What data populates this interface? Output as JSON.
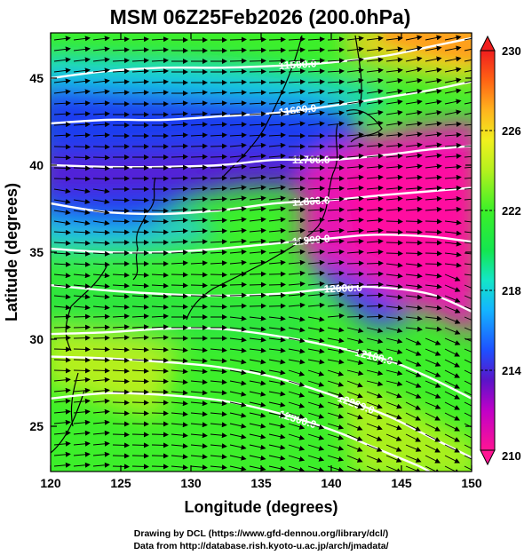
{
  "chart_data": {
    "type": "heatmap",
    "title": "MSM 06Z25Feb2026 (200.0hPa)",
    "xlabel": "Longitude (degrees)",
    "ylabel": "Latitude  (degrees)",
    "xlim": [
      120,
      150
    ],
    "ylim": [
      22.4,
      47.6
    ],
    "x_ticks": [
      120,
      125,
      130,
      135,
      140,
      145,
      150
    ],
    "y_ticks": [
      25,
      30,
      35,
      40,
      45
    ],
    "colorbar": {
      "range": [
        210,
        230
      ],
      "ticks": [
        210,
        214,
        218,
        222,
        226,
        230
      ],
      "color_stops": [
        {
          "value": 210,
          "color": "#ff1493"
        },
        {
          "value": 212,
          "color": "#c000c8"
        },
        {
          "value": 213.5,
          "color": "#5a14c8"
        },
        {
          "value": 215,
          "color": "#1e50ff"
        },
        {
          "value": 217,
          "color": "#14b4ff"
        },
        {
          "value": 218.5,
          "color": "#14e6c8"
        },
        {
          "value": 220,
          "color": "#14e650"
        },
        {
          "value": 222,
          "color": "#3cf028"
        },
        {
          "value": 224,
          "color": "#b4f01e"
        },
        {
          "value": 225.5,
          "color": "#f0f01e"
        },
        {
          "value": 227,
          "color": "#ffb41e"
        },
        {
          "value": 228.5,
          "color": "#ff6414"
        },
        {
          "value": 230,
          "color": "#f01e1e"
        }
      ]
    },
    "contours": [
      {
        "label": "11500.0",
        "points": [
          [
            120,
            45.0
          ],
          [
            124,
            45.4
          ],
          [
            128,
            45.6
          ],
          [
            132,
            45.6
          ],
          [
            136,
            45.7
          ],
          [
            140,
            45.9
          ],
          [
            144,
            46.3
          ],
          [
            147,
            46.8
          ],
          [
            150,
            47.3
          ]
        ]
      },
      {
        "label": "11600.0",
        "points": [
          [
            120,
            42.4
          ],
          [
            124,
            42.6
          ],
          [
            128,
            42.6
          ],
          [
            132,
            42.8
          ],
          [
            136,
            43.0
          ],
          [
            140,
            43.4
          ],
          [
            144,
            43.9
          ],
          [
            147,
            44.3
          ],
          [
            150,
            44.8
          ]
        ]
      },
      {
        "label": "11700.0",
        "points": [
          [
            120,
            40.0
          ],
          [
            124,
            39.9
          ],
          [
            128,
            39.9
          ],
          [
            132,
            40.0
          ],
          [
            136,
            40.3
          ],
          [
            140,
            40.3
          ],
          [
            144,
            40.6
          ],
          [
            147,
            40.9
          ],
          [
            150,
            41.1
          ]
        ]
      },
      {
        "label": "11800.0",
        "points": [
          [
            120,
            37.8
          ],
          [
            124,
            37.3
          ],
          [
            128,
            37.2
          ],
          [
            132,
            37.4
          ],
          [
            136,
            37.8
          ],
          [
            140,
            38.0
          ],
          [
            144,
            38.3
          ],
          [
            147,
            38.5
          ],
          [
            150,
            38.7
          ]
        ]
      },
      {
        "label": "11900.0",
        "points": [
          [
            120,
            35.2
          ],
          [
            124,
            35.0
          ],
          [
            128,
            35.0
          ],
          [
            132,
            35.2
          ],
          [
            136,
            35.5
          ],
          [
            140,
            35.8
          ],
          [
            143,
            36.0
          ],
          [
            147,
            35.9
          ],
          [
            150,
            35.6
          ]
        ]
      },
      {
        "label": "12000.0",
        "points": [
          [
            120,
            33.1
          ],
          [
            124,
            32.8
          ],
          [
            128,
            32.6
          ],
          [
            132,
            32.5
          ],
          [
            136,
            32.6
          ],
          [
            140,
            32.9
          ],
          [
            143,
            33.0
          ],
          [
            147,
            32.6
          ],
          [
            150,
            31.6
          ]
        ]
      },
      {
        "label": "12100.0",
        "points": [
          [
            120,
            30.3
          ],
          [
            124,
            30.4
          ],
          [
            128,
            30.6
          ],
          [
            132,
            30.6
          ],
          [
            136,
            30.2
          ],
          [
            140,
            29.6
          ],
          [
            144,
            28.8
          ],
          [
            147,
            27.8
          ],
          [
            150,
            26.6
          ]
        ]
      },
      {
        "label": "12200.0",
        "points": [
          [
            120,
            29.0
          ],
          [
            124,
            28.9
          ],
          [
            128,
            28.7
          ],
          [
            132,
            28.4
          ],
          [
            136,
            27.8
          ],
          [
            140,
            26.8
          ],
          [
            144,
            25.6
          ],
          [
            147,
            24.4
          ],
          [
            150,
            23.2
          ]
        ]
      },
      {
        "label": "12300.0",
        "points": [
          [
            120,
            26.6
          ],
          [
            124,
            26.9
          ],
          [
            128,
            26.8
          ],
          [
            132,
            26.5
          ],
          [
            136,
            25.8
          ],
          [
            140,
            24.8
          ],
          [
            143,
            23.8
          ],
          [
            146,
            22.8
          ],
          [
            147,
            22.4
          ]
        ]
      }
    ],
    "credits": [
      "Drawing by DCL (https://www.gfd-dennou.org/library/dcl/)",
      "Data from http://database.rish.kyoto-u.ac.jp/arch/jmadata/"
    ]
  }
}
